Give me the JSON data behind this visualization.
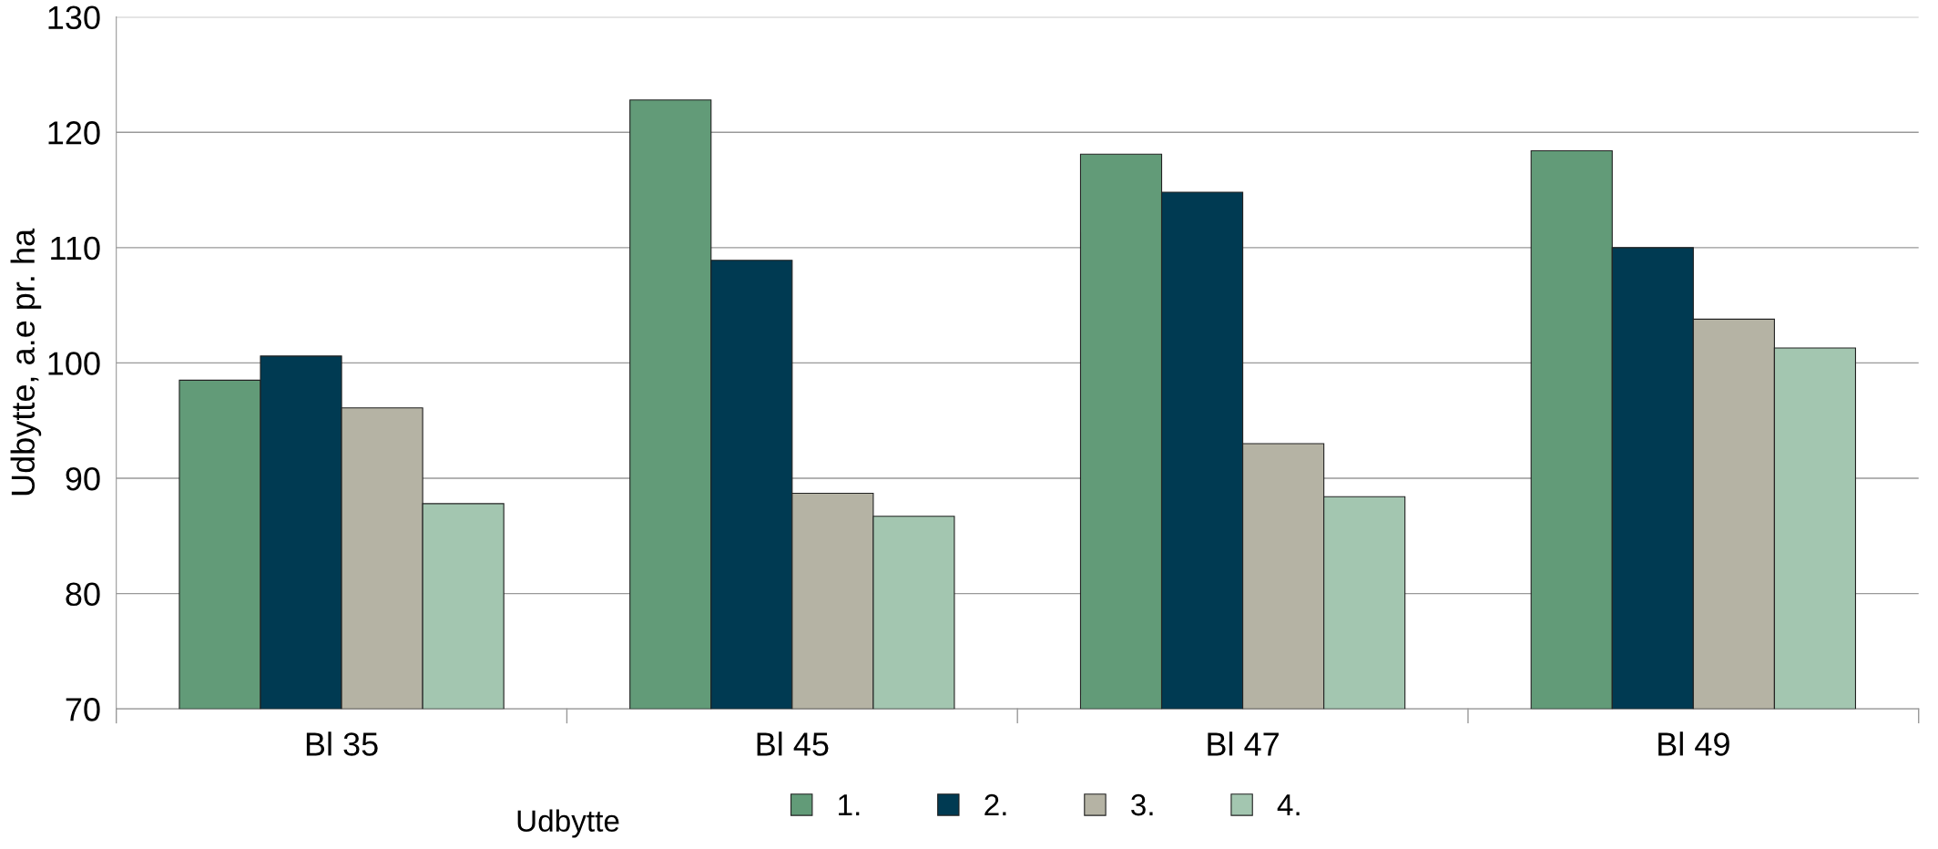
{
  "chart_data": {
    "type": "bar",
    "ylabel": "Udbytte, a.e pr. ha",
    "legend_title": "Udbytte",
    "categories": [
      "Bl 35",
      "Bl 45",
      "Bl 47",
      "Bl 49"
    ],
    "series": [
      {
        "name": "1.",
        "color": "#629b78",
        "values": [
          98.5,
          122.8,
          118.1,
          118.4
        ]
      },
      {
        "name": "2.",
        "color": "#003a52",
        "values": [
          100.6,
          108.9,
          114.8,
          110
        ]
      },
      {
        "name": "3.",
        "color": "#b5b3a4",
        "values": [
          96.1,
          88.7,
          93,
          103.8
        ]
      },
      {
        "name": "4.",
        "color": "#a3c6b0",
        "values": [
          87.8,
          86.7,
          88.4,
          101.3
        ]
      }
    ],
    "ylim": [
      70,
      130
    ],
    "yticks": [
      70,
      80,
      90,
      100,
      110,
      120,
      130
    ],
    "grid": "y",
    "legend": "bottom"
  }
}
